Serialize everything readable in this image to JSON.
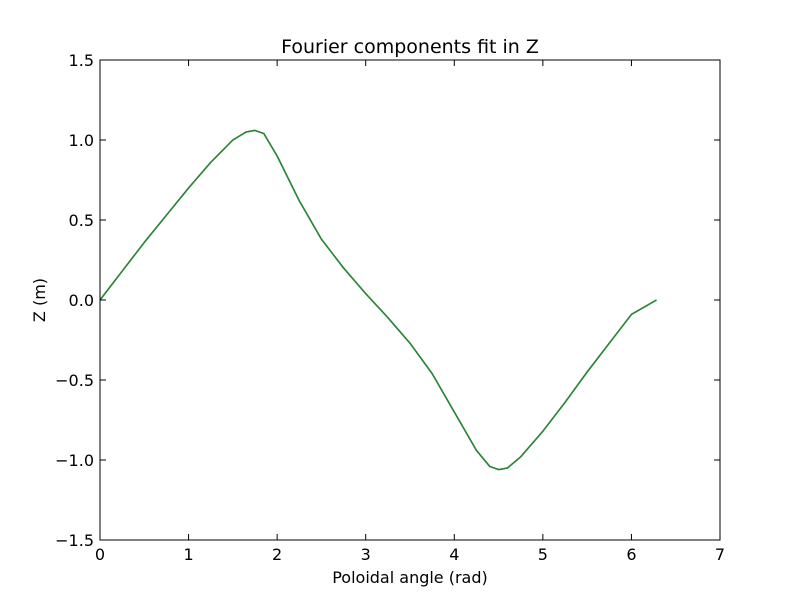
{
  "chart_data": {
    "type": "line",
    "title": "Fourier components fit in Z",
    "xlabel": "Poloidal angle (rad)",
    "ylabel": "Z (m)",
    "xlim": [
      0,
      7
    ],
    "ylim": [
      -1.5,
      1.5
    ],
    "xticks": [
      0,
      1,
      2,
      3,
      4,
      5,
      6,
      7
    ],
    "xtick_labels": [
      "0",
      "1",
      "2",
      "3",
      "4",
      "5",
      "6",
      "7"
    ],
    "yticks": [
      -1.5,
      -1.0,
      -0.5,
      0.0,
      0.5,
      1.0,
      1.5
    ],
    "ytick_labels": [
      "−1.5",
      "−1.0",
      "−0.5",
      "0.0",
      "0.5",
      "1.0",
      "1.5"
    ],
    "grid": false,
    "series": [
      {
        "color": "#1f4e9e",
        "x": [
          0,
          0.25,
          0.5,
          0.75,
          1.0,
          1.25,
          1.5,
          1.65,
          1.75,
          1.85,
          2.0,
          2.25,
          2.5,
          2.75,
          3.0,
          3.25,
          3.5,
          3.75,
          4.0,
          4.25,
          4.4,
          4.5,
          4.6,
          4.75,
          5.0,
          5.25,
          5.5,
          5.75,
          6.0,
          6.283
        ],
        "y": [
          0.0,
          0.18,
          0.36,
          0.53,
          0.7,
          0.86,
          1.0,
          1.05,
          1.06,
          1.04,
          0.9,
          0.62,
          0.38,
          0.2,
          0.04,
          -0.11,
          -0.27,
          -0.46,
          -0.7,
          -0.94,
          -1.04,
          -1.06,
          -1.05,
          -0.98,
          -0.82,
          -0.64,
          -0.45,
          -0.27,
          -0.09,
          0.0
        ]
      },
      {
        "color": "#2a8a2a",
        "x": [
          0,
          0.25,
          0.5,
          0.75,
          1.0,
          1.25,
          1.5,
          1.65,
          1.75,
          1.85,
          2.0,
          2.25,
          2.5,
          2.75,
          3.0,
          3.25,
          3.5,
          3.75,
          4.0,
          4.25,
          4.4,
          4.5,
          4.6,
          4.75,
          5.0,
          5.25,
          5.5,
          5.75,
          6.0,
          6.283
        ],
        "y": [
          0.0,
          0.18,
          0.36,
          0.53,
          0.7,
          0.86,
          1.0,
          1.05,
          1.06,
          1.04,
          0.9,
          0.62,
          0.38,
          0.2,
          0.04,
          -0.11,
          -0.27,
          -0.46,
          -0.7,
          -0.94,
          -1.04,
          -1.06,
          -1.05,
          -0.98,
          -0.82,
          -0.64,
          -0.45,
          -0.27,
          -0.09,
          0.0
        ]
      }
    ]
  }
}
